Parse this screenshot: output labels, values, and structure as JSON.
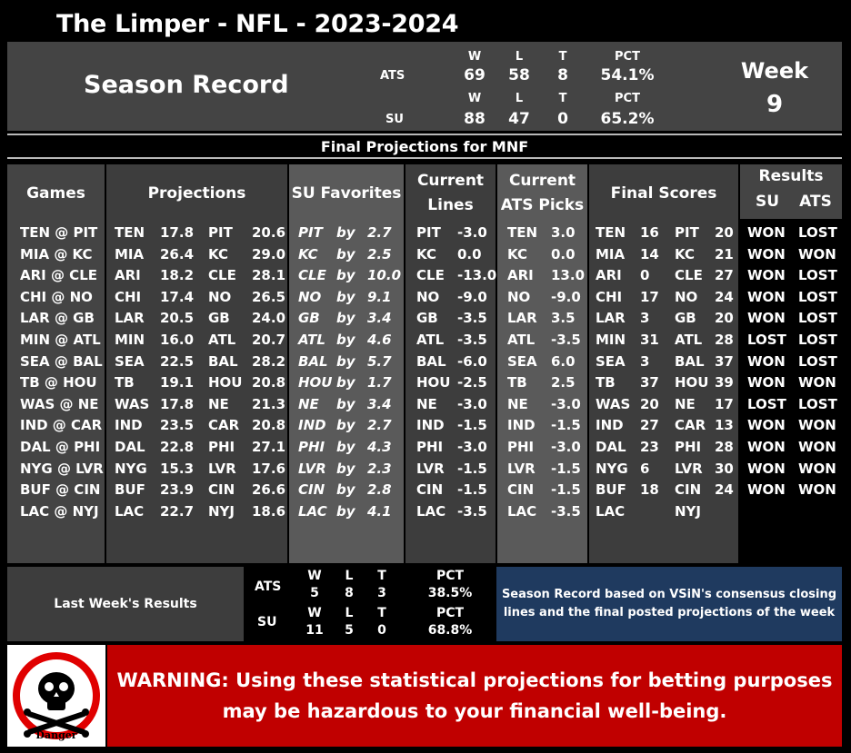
{
  "header": {
    "title": "The Limper - NFL - 2023-2024",
    "season_label": "Season Record",
    "week_label": "Week",
    "week_number": "9",
    "mnf_label": "Final Projections for MNF"
  },
  "season_record": {
    "col_w": "W",
    "col_l": "L",
    "col_t": "T",
    "col_pct": "PCT",
    "ats": {
      "label": "ATS",
      "w": "69",
      "l": "58",
      "t": "8",
      "pct": "54.1%"
    },
    "su": {
      "label": "SU",
      "w": "88",
      "l": "47",
      "t": "0",
      "pct": "65.2%"
    }
  },
  "columns": {
    "games": "Games",
    "projections": "Projections",
    "su_favorites": "SU Favorites",
    "current_lines_1": "Current",
    "current_lines_2": "Lines",
    "current_picks_1": "Current",
    "current_picks_2": "ATS Picks",
    "final_scores": "Final Scores",
    "results": "Results",
    "results_su": "SU",
    "results_ats": "ATS"
  },
  "games": [
    {
      "game": "TEN @ PIT",
      "p_away": "TEN",
      "p_away_score": "17.8",
      "p_home": "PIT",
      "p_home_score": "20.6",
      "fav": "PIT",
      "by": "by",
      "margin": "2.7",
      "line_team": "PIT",
      "line": "-3.0",
      "pick_team": "TEN",
      "pick_line": "3.0",
      "s_away": "TEN",
      "s_away_score": "16",
      "s_home": "PIT",
      "s_home_score": "20",
      "su": "WON",
      "ats": "LOST"
    },
    {
      "game": "MIA @ KC",
      "p_away": "MIA",
      "p_away_score": "26.4",
      "p_home": "KC",
      "p_home_score": "29.0",
      "fav": "KC",
      "by": "by",
      "margin": "2.5",
      "line_team": "KC",
      "line": "0.0",
      "pick_team": "KC",
      "pick_line": "0.0",
      "s_away": "MIA",
      "s_away_score": "14",
      "s_home": "KC",
      "s_home_score": "21",
      "su": "WON",
      "ats": "WON"
    },
    {
      "game": "ARI @ CLE",
      "p_away": "ARI",
      "p_away_score": "18.2",
      "p_home": "CLE",
      "p_home_score": "28.1",
      "fav": "CLE",
      "by": "by",
      "margin": "10.0",
      "line_team": "CLE",
      "line": "-13.0",
      "pick_team": "ARI",
      "pick_line": "13.0",
      "s_away": "ARI",
      "s_away_score": "0",
      "s_home": "CLE",
      "s_home_score": "27",
      "su": "WON",
      "ats": "LOST"
    },
    {
      "game": "CHI @ NO",
      "p_away": "CHI",
      "p_away_score": "17.4",
      "p_home": "NO",
      "p_home_score": "26.5",
      "fav": "NO",
      "by": "by",
      "margin": "9.1",
      "line_team": "NO",
      "line": "-9.0",
      "pick_team": "NO",
      "pick_line": "-9.0",
      "s_away": "CHI",
      "s_away_score": "17",
      "s_home": "NO",
      "s_home_score": "24",
      "su": "WON",
      "ats": "LOST"
    },
    {
      "game": "LAR @ GB",
      "p_away": "LAR",
      "p_away_score": "20.5",
      "p_home": "GB",
      "p_home_score": "24.0",
      "fav": "GB",
      "by": "by",
      "margin": "3.4",
      "line_team": "GB",
      "line": "-3.5",
      "pick_team": "LAR",
      "pick_line": "3.5",
      "s_away": "LAR",
      "s_away_score": "3",
      "s_home": "GB",
      "s_home_score": "20",
      "su": "WON",
      "ats": "LOST"
    },
    {
      "game": "MIN @ ATL",
      "p_away": "MIN",
      "p_away_score": "16.0",
      "p_home": "ATL",
      "p_home_score": "20.7",
      "fav": "ATL",
      "by": "by",
      "margin": "4.6",
      "line_team": "ATL",
      "line": "-3.5",
      "pick_team": "ATL",
      "pick_line": "-3.5",
      "s_away": "MIN",
      "s_away_score": "31",
      "s_home": "ATL",
      "s_home_score": "28",
      "su": "LOST",
      "ats": "LOST"
    },
    {
      "game": "SEA @ BAL",
      "p_away": "SEA",
      "p_away_score": "22.5",
      "p_home": "BAL",
      "p_home_score": "28.2",
      "fav": "BAL",
      "by": "by",
      "margin": "5.7",
      "line_team": "BAL",
      "line": "-6.0",
      "pick_team": "SEA",
      "pick_line": "6.0",
      "s_away": "SEA",
      "s_away_score": "3",
      "s_home": "BAL",
      "s_home_score": "37",
      "su": "WON",
      "ats": "LOST"
    },
    {
      "game": "TB @ HOU",
      "p_away": "TB",
      "p_away_score": "19.1",
      "p_home": "HOU",
      "p_home_score": "20.8",
      "fav": "HOU",
      "by": "by",
      "margin": "1.7",
      "line_team": "HOU",
      "line": "-2.5",
      "pick_team": "TB",
      "pick_line": "2.5",
      "s_away": "TB",
      "s_away_score": "37",
      "s_home": "HOU",
      "s_home_score": "39",
      "su": "WON",
      "ats": "WON"
    },
    {
      "game": "WAS @ NE",
      "p_away": "WAS",
      "p_away_score": "17.8",
      "p_home": "NE",
      "p_home_score": "21.3",
      "fav": "NE",
      "by": "by",
      "margin": "3.4",
      "line_team": "NE",
      "line": "-3.0",
      "pick_team": "NE",
      "pick_line": "-3.0",
      "s_away": "WAS",
      "s_away_score": "20",
      "s_home": "NE",
      "s_home_score": "17",
      "su": "LOST",
      "ats": "LOST"
    },
    {
      "game": "IND @ CAR",
      "p_away": "IND",
      "p_away_score": "23.5",
      "p_home": "CAR",
      "p_home_score": "20.8",
      "fav": "IND",
      "by": "by",
      "margin": "2.7",
      "line_team": "IND",
      "line": "-1.5",
      "pick_team": "IND",
      "pick_line": "-1.5",
      "s_away": "IND",
      "s_away_score": "27",
      "s_home": "CAR",
      "s_home_score": "13",
      "su": "WON",
      "ats": "WON"
    },
    {
      "game": "DAL @ PHI",
      "p_away": "DAL",
      "p_away_score": "22.8",
      "p_home": "PHI",
      "p_home_score": "27.1",
      "fav": "PHI",
      "by": "by",
      "margin": "4.3",
      "line_team": "PHI",
      "line": "-3.0",
      "pick_team": "PHI",
      "pick_line": "-3.0",
      "s_away": "DAL",
      "s_away_score": "23",
      "s_home": "PHI",
      "s_home_score": "28",
      "su": "WON",
      "ats": "WON"
    },
    {
      "game": "NYG @ LVR",
      "p_away": "NYG",
      "p_away_score": "15.3",
      "p_home": "LVR",
      "p_home_score": "17.6",
      "fav": "LVR",
      "by": "by",
      "margin": "2.3",
      "line_team": "LVR",
      "line": "-1.5",
      "pick_team": "LVR",
      "pick_line": "-1.5",
      "s_away": "NYG",
      "s_away_score": "6",
      "s_home": "LVR",
      "s_home_score": "30",
      "su": "WON",
      "ats": "WON"
    },
    {
      "game": "BUF @ CIN",
      "p_away": "BUF",
      "p_away_score": "23.9",
      "p_home": "CIN",
      "p_home_score": "26.6",
      "fav": "CIN",
      "by": "by",
      "margin": "2.8",
      "line_team": "CIN",
      "line": "-1.5",
      "pick_team": "CIN",
      "pick_line": "-1.5",
      "s_away": "BUF",
      "s_away_score": "18",
      "s_home": "CIN",
      "s_home_score": "24",
      "su": "WON",
      "ats": "WON"
    },
    {
      "game": "LAC @ NYJ",
      "p_away": "LAC",
      "p_away_score": "22.7",
      "p_home": "NYJ",
      "p_home_score": "18.6",
      "fav": "LAC",
      "by": "by",
      "margin": "4.1",
      "line_team": "LAC",
      "line": "-3.5",
      "pick_team": "LAC",
      "pick_line": "-3.5",
      "s_away": "LAC",
      "s_away_score": "",
      "s_home": "NYJ",
      "s_home_score": "",
      "su": "",
      "ats": ""
    }
  ],
  "last_week": {
    "label": "Last Week's Results",
    "col_w": "W",
    "col_l": "L",
    "col_t": "T",
    "col_pct": "PCT",
    "ats": {
      "label": "ATS",
      "w": "5",
      "l": "8",
      "t": "3",
      "pct": "38.5%"
    },
    "su": {
      "label": "SU",
      "w": "11",
      "l": "5",
      "t": "0",
      "pct": "68.8%"
    }
  },
  "note": "Season Record based on VSiN's consensus closing lines and the final posted projections of the week",
  "warning": {
    "text": "WARNING: Using these statistical projections for betting purposes may be hazardous to your financial well-being.",
    "icon_label": "Danger",
    "icon": "skull-crossbones-icon"
  },
  "colors": {
    "warning_red": "#c00000",
    "note_blue": "#1f3a5f",
    "panel_gray": "#444444"
  }
}
